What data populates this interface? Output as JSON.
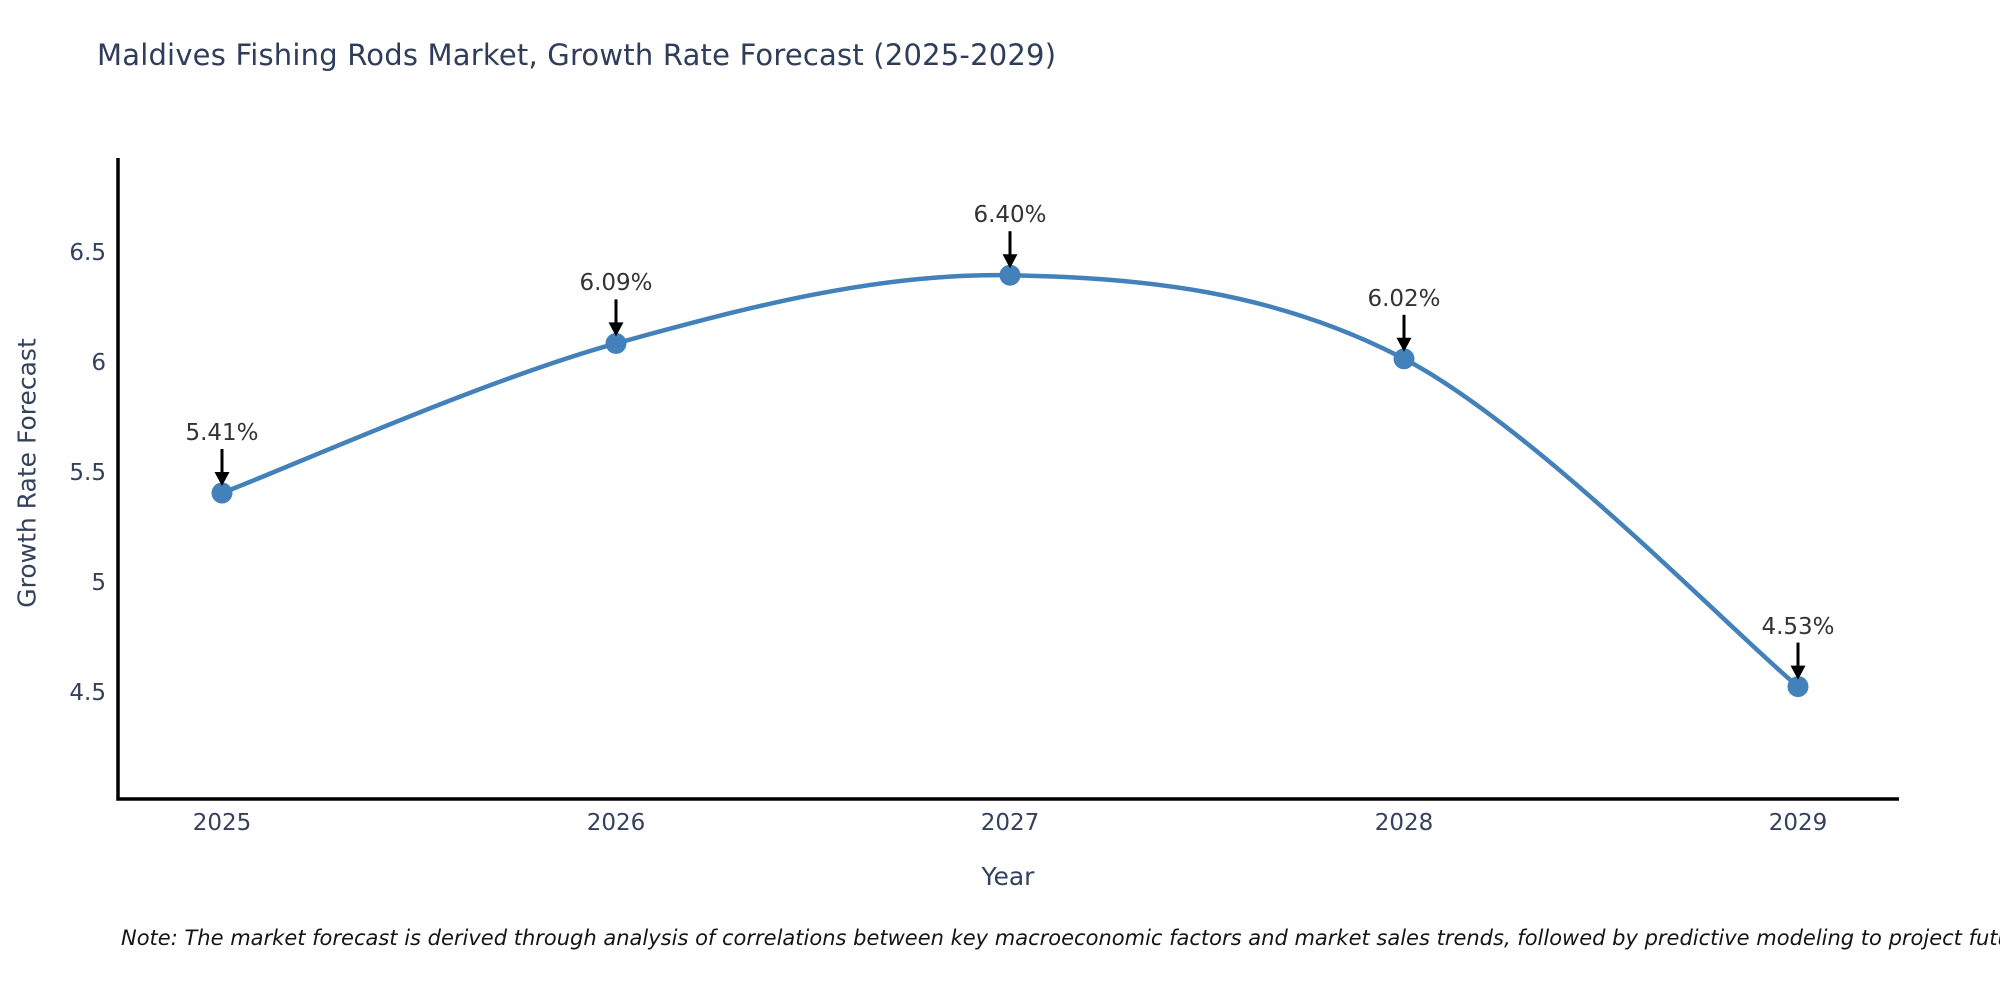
{
  "title": "Maldives Fishing Rods Market, Growth Rate Forecast (2025-2029)",
  "note": "Note: The market forecast is derived through analysis of correlations between key macroeconomic factors and market sales trends, followed by predictive modeling to project future sales",
  "colors": {
    "line": "#4381bb",
    "marker": "#4381bb",
    "axis": "#000000",
    "arrow": "#000000",
    "text": "#2e3d59",
    "annotation_text": "#333333"
  },
  "chart_data": {
    "type": "line",
    "title": "Maldives Fishing Rods Market, Growth Rate Forecast (2025-2029)",
    "xlabel": "Year",
    "ylabel": "Growth Rate Forecast",
    "x": [
      2025,
      2026,
      2027,
      2028,
      2029
    ],
    "values": [
      5.41,
      6.09,
      6.4,
      6.02,
      4.53
    ],
    "point_labels": [
      "5.41%",
      "6.09%",
      "6.40%",
      "6.02%",
      "4.53%"
    ],
    "xtick_labels": [
      "2025",
      "2026",
      "2027",
      "2028",
      "2029"
    ],
    "yticks": [
      4.5,
      5,
      5.5,
      6,
      6.5
    ],
    "ytick_labels": [
      "4.5",
      "5",
      "5.5",
      "6",
      "6.5"
    ],
    "ylim": [
      4.02,
      6.93
    ],
    "grid": false,
    "legend": "none",
    "line_shape": "spline",
    "marker": "circle",
    "annotations": "value labels with black arrows pointing to each data point"
  }
}
